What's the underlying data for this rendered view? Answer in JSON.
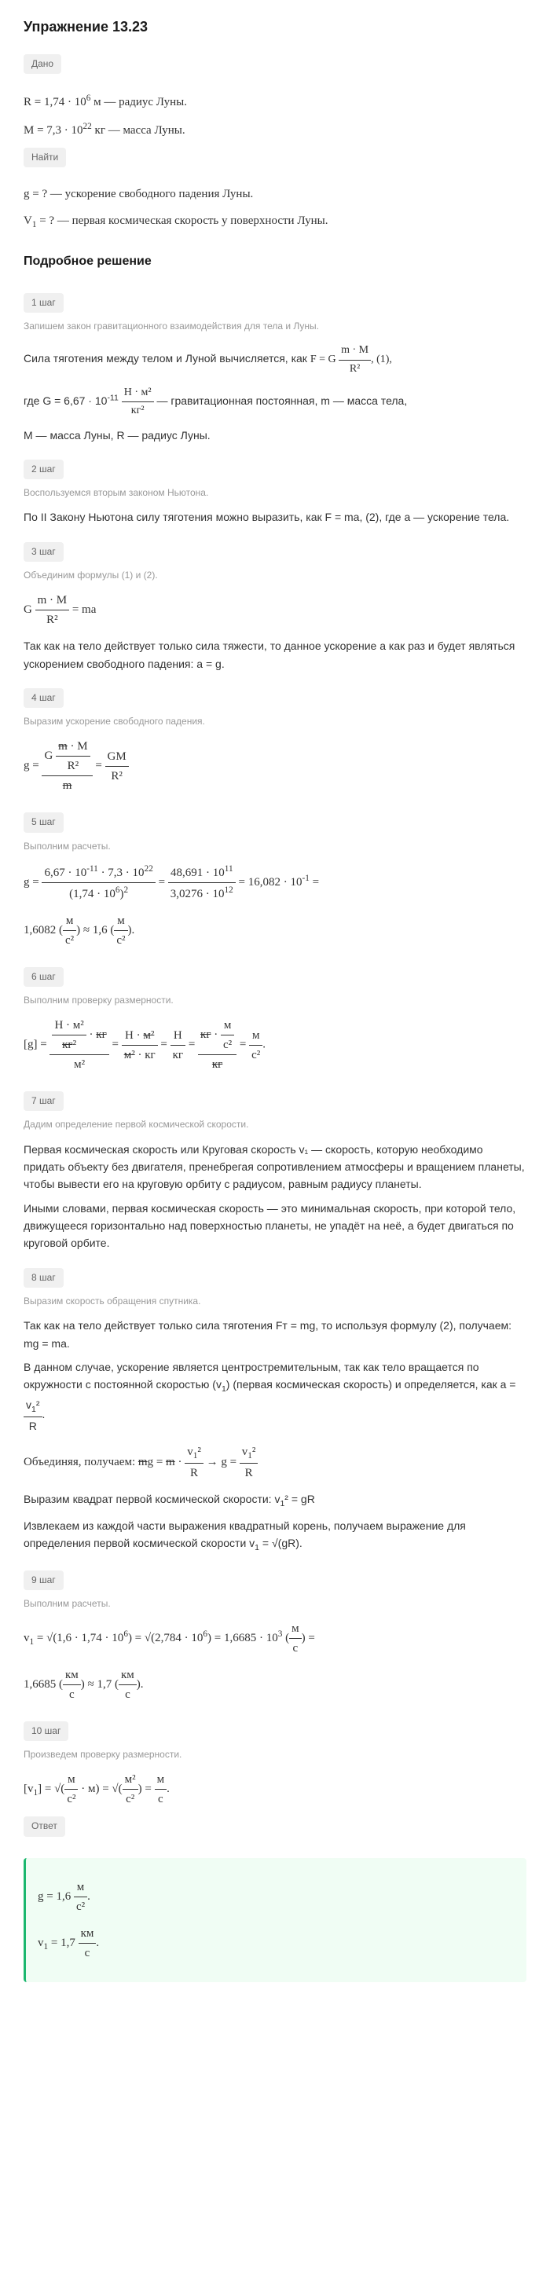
{
  "title": "Упражнение 13.23",
  "tags": {
    "given": "Дано",
    "find": "Найти",
    "answer": "Ответ"
  },
  "given": {
    "line1_pre": "R = 1,74 · 10",
    "line1_exp": "6",
    "line1_post": " м — радиус Луны.",
    "line2_pre": "M = 7,3 · 10",
    "line2_exp": "22",
    "line2_post": " кг — масса Луны."
  },
  "find": {
    "line1": "g = ? — ускорение свободного падения Луны.",
    "line2_pre": "V",
    "line2_sub": "1",
    "line2_post": " = ? — первая космическая скорость у поверхности Луны."
  },
  "solution_heading": "Подробное решение",
  "steps": [
    {
      "tag": "1 шаг",
      "desc": "Запишем закон гравитационного взаимодействия для тела и Луны.",
      "text1": "Сила тяготения между телом и Луной вычисляется, как ",
      "formula1": "F = G (m · M) / R², (1),",
      "text2_pre": "где G = 6,67 · 10",
      "text2_exp": "-11",
      "text2_mid": " (Н · м²)/кг² — гравитационная постоянная, m — масса тела,",
      "text3": "M — масса Луны, R — радиус Луны."
    },
    {
      "tag": "2 шаг",
      "desc": "Воспользуемся вторым законом Ньютона.",
      "text1": "По II Закону Ньютона силу тяготения можно выразить, как F = ma, (2), где a — ускорение тела."
    },
    {
      "tag": "3 шаг",
      "desc": "Объединим формулы (1) и (2).",
      "formula1": "G (m · M) / R² = ma",
      "text1": "Так как на тело действует только сила тяжести, то данное ускорение a как раз и будет являться ускорением свободного падения: a = g."
    },
    {
      "tag": "4 шаг",
      "desc": "Выразим ускорение свободного падения.",
      "formula1": "g = (G (m · M) / R²) / m = GM / R²"
    },
    {
      "tag": "5 шаг",
      "desc": "Выполним расчеты.",
      "formula1": "g = (6,67 · 10⁻¹¹ · 7,3 · 10²²) / (1,74 · 10⁶)² = (48,691 · 10¹¹) / (3,0276 · 10¹²) = 16,082 · 10⁻¹ =",
      "formula2": "1,6082 (м/с²) ≈ 1,6 (м/с²)."
    },
    {
      "tag": "6 шаг",
      "desc": "Выполним проверку размерности.",
      "formula1": "[g] = (Н · м² / кг² · кг) / м² = (Н · м²) / (м² · кг) = Н/кг = (кг · м/с²) / кг = м/с²."
    },
    {
      "tag": "7 шаг",
      "desc": "Дадим определение первой космической скорости.",
      "text1": "Первая космическая скорость или Круговая скорость v₁ — скорость, которую необходимо придать объекту без двигателя, пренебрегая сопротивлением атмосферы и вращением планеты, чтобы вывести его на круговую орбиту с радиусом, равным радиусу планеты.",
      "text2": "Иными словами, первая космическая скорость — это минимальная скорость, при которой тело, движущееся горизонтально над поверхностью планеты, не упадёт на неё, а будет двигаться по круговой орбите."
    },
    {
      "tag": "8 шаг",
      "desc": "Выразим скорость обращения спутника.",
      "text1": "Так как на тело действует только сила тяготения Fт = mg, то используя формулу (2), получаем: mg = ma.",
      "text2": "В данном случае, ускорение является центростремительным, так как тело вращается по окружности с постоянной скоростью (v₁) (первая космическая скорость) и определяется, как a = v₁²/R.",
      "text3": "Объединяя, получаем: mg = m · v₁²/R → g = v₁²/R",
      "text4": "Выразим квадрат первой космической скорости: v₁² = gR",
      "text5": "Извлекаем из каждой части выражения квадратный корень, получаем выражение для определения первой космической скорости v₁ = √(gR)."
    },
    {
      "tag": "9 шаг",
      "desc": "Выполним расчеты.",
      "formula1": "v₁ = √(1,6 · 1,74 · 10⁶) = √(2,784 · 10⁶) = 1,6685 · 10³ (м/с) =",
      "formula2": "1,6685 (км/с) ≈ 1,7 (км/с)."
    },
    {
      "tag": "10 шаг",
      "desc": "Произведем проверку размерности.",
      "formula1": "[v₁] = √(м/с² · м) = √(м²/с²) = м/с."
    }
  ],
  "answer": {
    "line1": "g = 1,6 м/с².",
    "line2": "v₁ = 1,7 км/с."
  }
}
